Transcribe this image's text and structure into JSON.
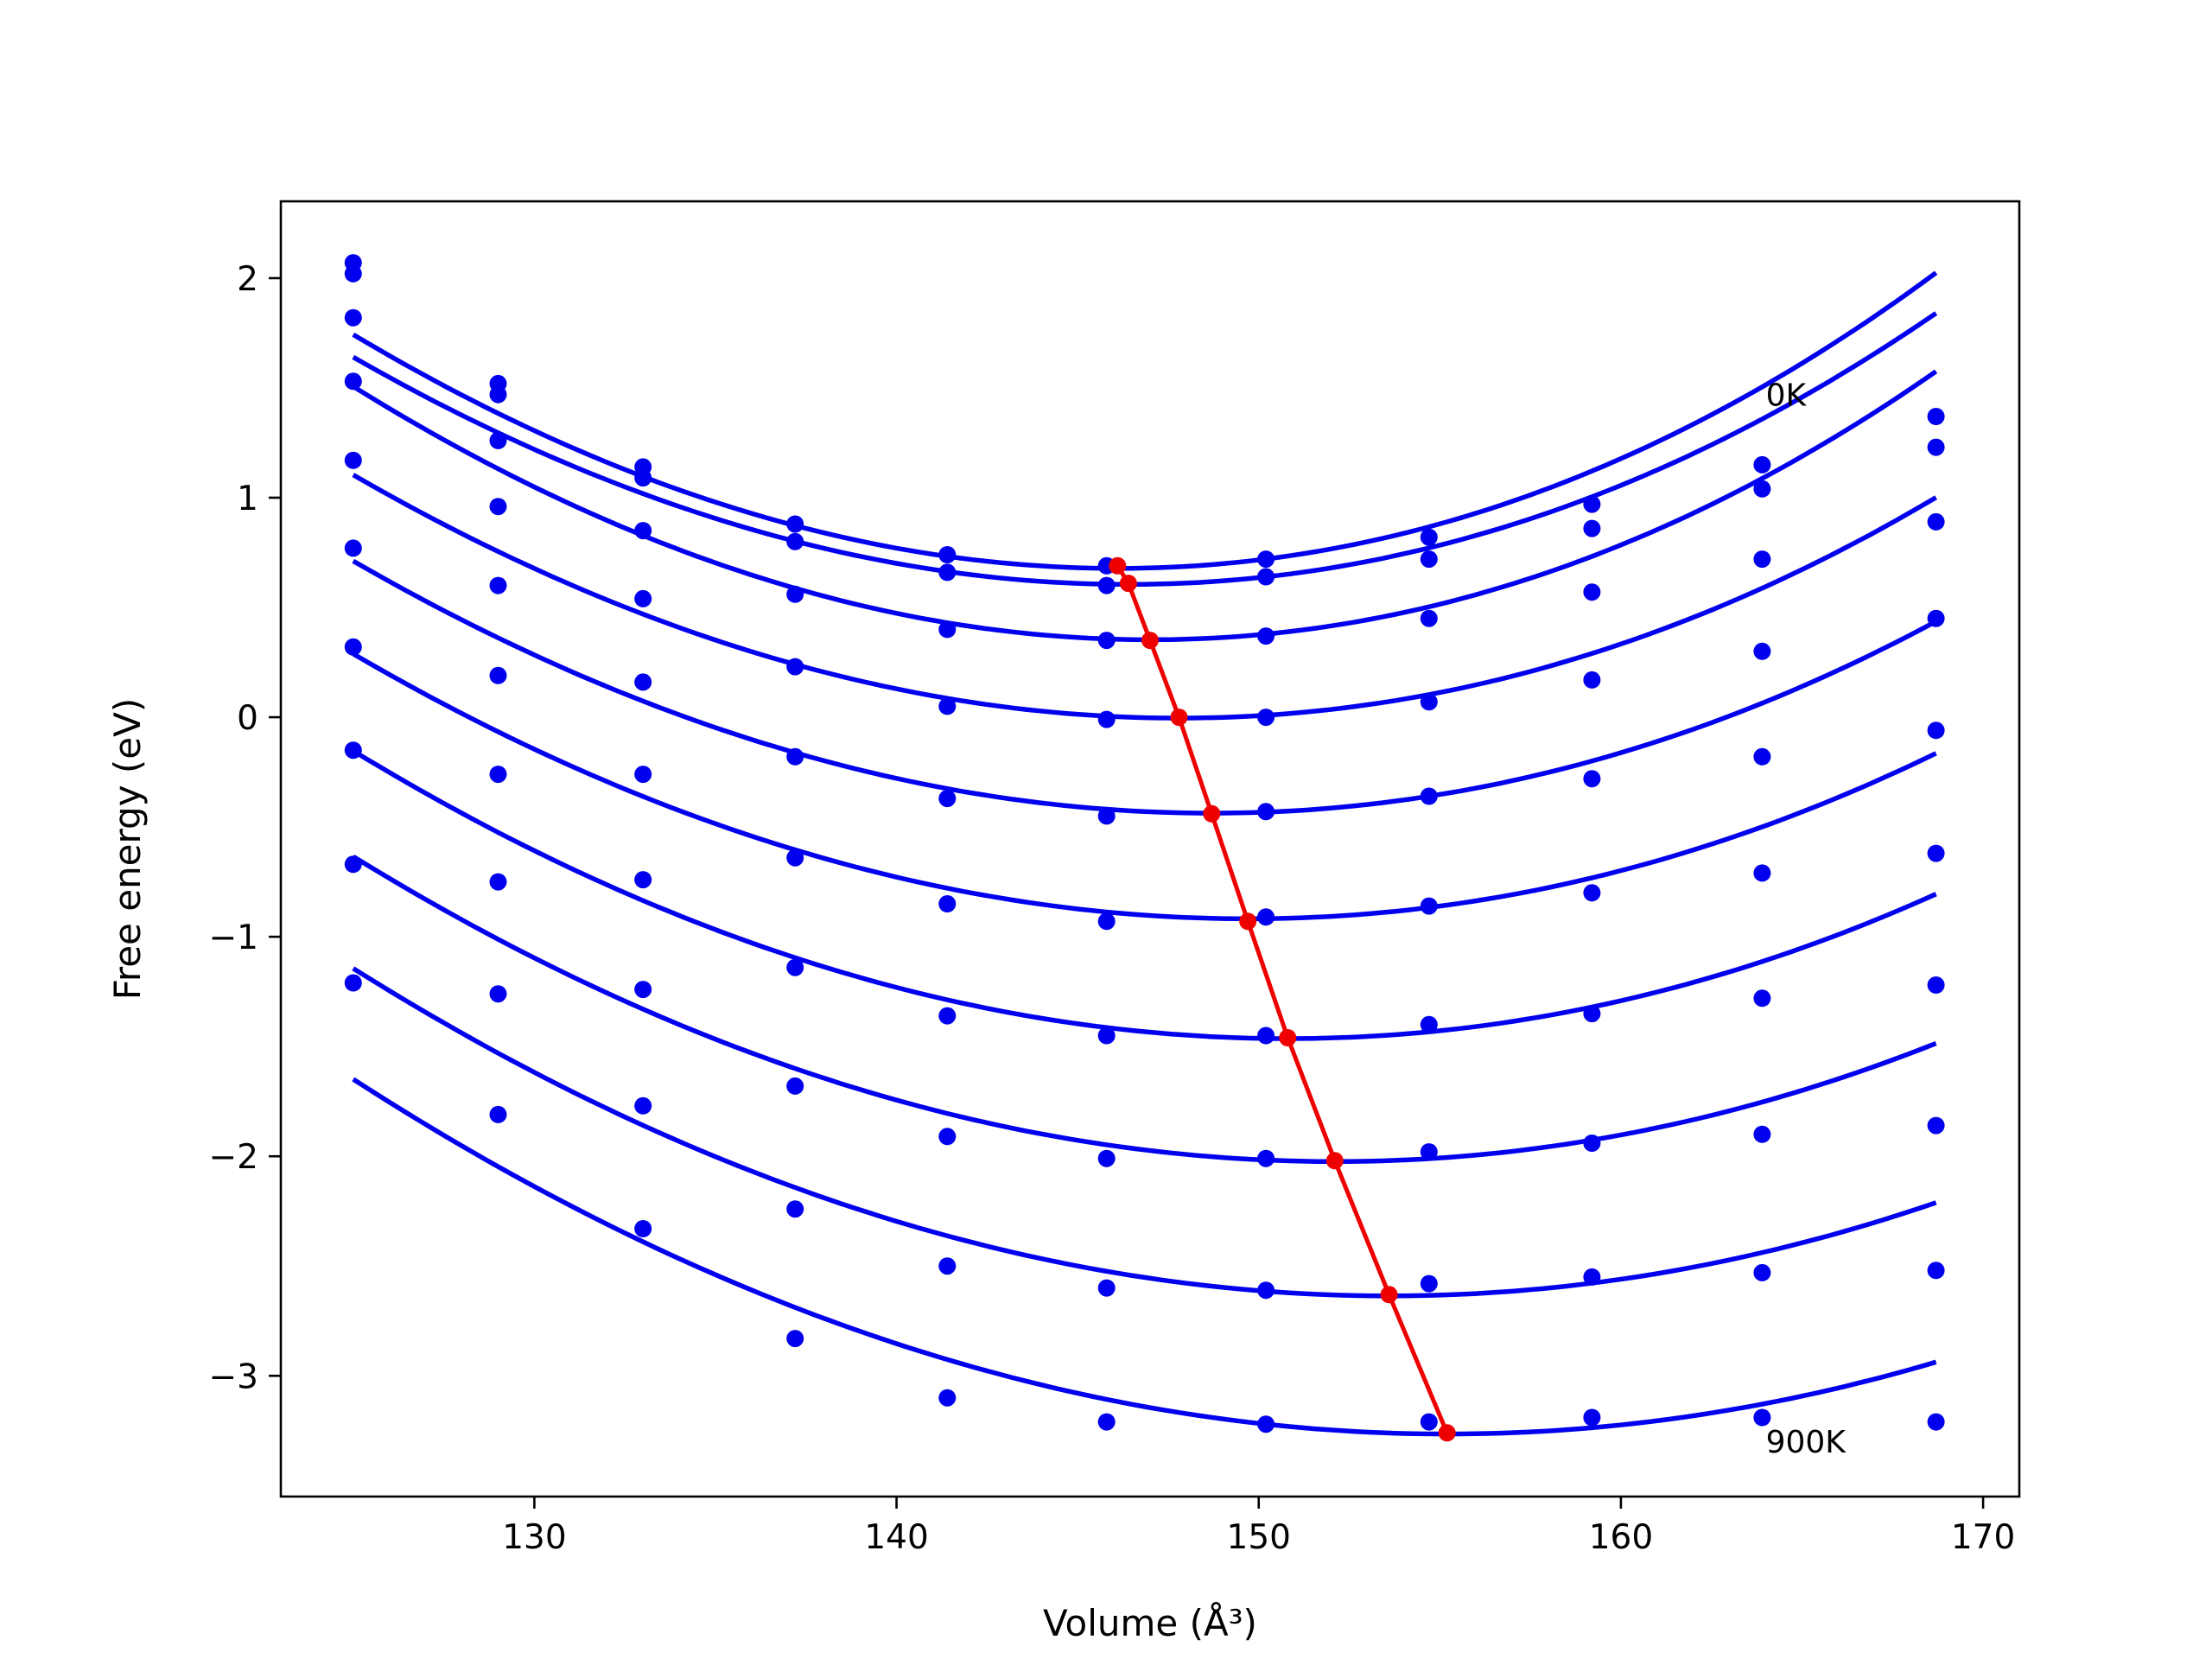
{
  "chart_data": {
    "type": "line",
    "title": "",
    "xlabel": "Volume (Å³)",
    "ylabel": "Free energy (eV)",
    "xlim": [
      123,
      171
    ],
    "ylim": [
      -3.55,
      2.35
    ],
    "xticks": [
      130,
      140,
      150,
      160,
      170
    ],
    "yticks": [
      -3,
      -2,
      -1,
      0,
      1,
      2
    ],
    "ytick_labels": [
      "−3",
      "−2",
      "−1",
      "0",
      "1",
      "2"
    ],
    "grid": false,
    "legend": "none",
    "colors": {
      "fit_curve": "#0000ee",
      "data_points": "#0000ee",
      "minimum_path": "#ee0000"
    },
    "annotations": [
      {
        "text": "0K",
        "x": 164.0,
        "y": 1.42
      },
      {
        "text": "900K",
        "x": 164.0,
        "y": -3.35
      }
    ],
    "volumes": [
      125.0,
      129.0,
      133.0,
      137.2,
      141.4,
      145.8,
      150.2,
      154.7,
      159.2,
      163.9,
      168.7
    ],
    "series": [
      {
        "fit": [
          0.678,
          0.00251,
          5.57e-06
        ],
        "points": [
          2.07,
          1.52,
          1.14,
          0.88,
          0.74,
          0.69,
          0.72,
          0.82,
          0.97,
          1.15,
          1.37
        ]
      },
      {
        "fit": [
          0.605,
          0.00237,
          5.12e-06
        ],
        "points": [
          2.02,
          1.47,
          1.09,
          0.8,
          0.66,
          0.6,
          0.64,
          0.72,
          0.86,
          1.04,
          1.23
        ]
      },
      {
        "fit": [
          0.353,
          0.00249,
          4.86e-06
        ],
        "points": [
          1.82,
          1.26,
          0.85,
          0.56,
          0.4,
          0.35,
          0.37,
          0.45,
          0.57,
          0.72,
          0.89
        ]
      },
      {
        "fit": [
          -0.004,
          0.00222,
          3.9e-06
        ],
        "points": [
          1.53,
          0.96,
          0.54,
          0.23,
          0.05,
          -0.01,
          0.0,
          0.07,
          0.17,
          0.3,
          0.45
        ]
      },
      {
        "fit": [
          -0.437,
          0.00212,
          3.17e-06
        ],
        "points": [
          1.17,
          0.6,
          0.16,
          -0.18,
          -0.37,
          -0.45,
          -0.43,
          -0.36,
          -0.28,
          -0.18,
          -0.06
        ]
      },
      {
        "fit": [
          -0.918,
          0.00204,
          2.52e-06
        ],
        "points": [
          0.77,
          0.19,
          -0.26,
          -0.64,
          -0.85,
          -0.93,
          -0.91,
          -0.86,
          -0.8,
          -0.71,
          -0.62
        ]
      },
      {
        "fit": [
          -1.464,
          0.00202,
          1.98e-06
        ],
        "points": [
          0.32,
          -0.26,
          -0.74,
          -1.14,
          -1.36,
          -1.45,
          -1.45,
          -1.4,
          -1.35,
          -1.28,
          -1.22
        ]
      },
      {
        "fit": [
          -2.024,
          0.00193,
          1.41e-06
        ],
        "points": [
          -0.15,
          -0.75,
          -1.24,
          -1.68,
          -1.91,
          -2.01,
          -2.01,
          -1.98,
          -1.94,
          -1.9,
          -1.86
        ]
      },
      {
        "fit": [
          -2.636,
          0.00185,
          9.2e-07
        ],
        "points": [
          -0.67,
          -1.26,
          -1.77,
          -2.24,
          -2.5,
          -2.6,
          -2.61,
          -2.58,
          -2.55,
          -2.53,
          -2.52
        ]
      },
      {
        "fit": [
          -3.265,
          0.00179,
          6e-07
        ],
        "points": [
          -1.21,
          -1.81,
          -2.33,
          -2.83,
          -3.1,
          -3.21,
          -3.22,
          -3.21,
          -3.19,
          -3.19,
          -3.21
        ]
      }
    ],
    "minimum_path": {
      "x": [
        146.1,
        146.4,
        147.0,
        147.8,
        148.7,
        149.7,
        150.8,
        152.1,
        153.6,
        155.2
      ],
      "y": [
        0.69,
        0.61,
        0.35,
        0.0,
        -0.44,
        -0.93,
        -1.46,
        -2.02,
        -2.63,
        -3.26
      ]
    }
  }
}
